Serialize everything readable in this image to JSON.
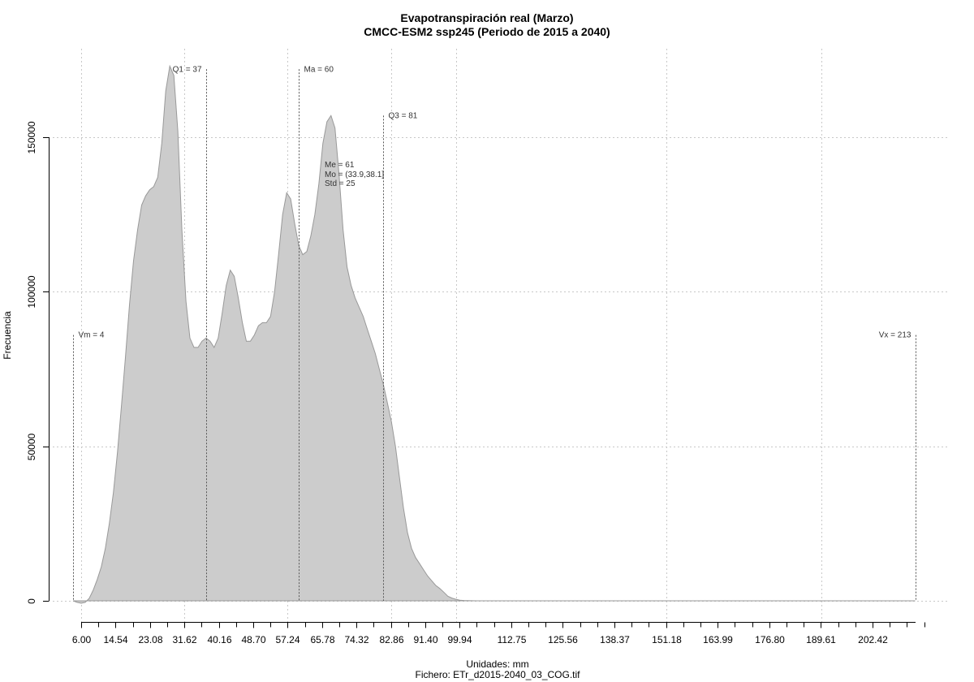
{
  "chart_data": {
    "type": "area",
    "title": "Evapotranspiración real (Marzo)",
    "subtitle": "CMCC-ESM2 ssp245 (Periodo de 2015 a 2040)",
    "xlabel": "Unidades: mm",
    "ylabel": "Frecuencia",
    "caption": "Fichero: ETr_d2015-2040_03_COG.tif",
    "xlim": [
      6.0,
      219
    ],
    "ylim": [
      0,
      150000
    ],
    "grid": true,
    "fill_color": "#cccccc",
    "line_color": "#999999",
    "x_tick_labels": [
      "6.00",
      "14.54",
      "23.08",
      "31.62",
      "40.16",
      "48.70",
      "57.24",
      "65.78",
      "74.32",
      "82.86",
      "91.40",
      "99.94",
      "112.75",
      "125.56",
      "138.37",
      "151.18",
      "163.99",
      "176.80",
      "189.61",
      "202.42"
    ],
    "x_tick_values": [
      6.0,
      14.54,
      23.08,
      31.62,
      40.16,
      48.7,
      57.24,
      65.78,
      74.32,
      82.86,
      91.4,
      99.94,
      112.75,
      125.56,
      138.37,
      151.18,
      163.99,
      176.8,
      189.61,
      202.42
    ],
    "y_tick_labels": [
      "0",
      "50000",
      "100000",
      "150000"
    ],
    "y_tick_values": [
      0,
      50000,
      100000,
      150000
    ],
    "series": [
      {
        "x": [
          4,
          5,
          6,
          7,
          8,
          9,
          10,
          11,
          12,
          13,
          14,
          15,
          16,
          17,
          18,
          19,
          20,
          21,
          22,
          23,
          24,
          25,
          26,
          27,
          28,
          29,
          30,
          31,
          32,
          33,
          34,
          35,
          36,
          37,
          38,
          39,
          40,
          41,
          42,
          43,
          44,
          45,
          46,
          47,
          48,
          49,
          50,
          51,
          52,
          53,
          54,
          55,
          56,
          57,
          58,
          59,
          60,
          61,
          62,
          63,
          64,
          65,
          66,
          67,
          68,
          69,
          70,
          71,
          72,
          73,
          74,
          75,
          76,
          77,
          78,
          79,
          80,
          81,
          82,
          83,
          84,
          85,
          86,
          87,
          88,
          89,
          90,
          91,
          92,
          93,
          94,
          95,
          96,
          97,
          98,
          99,
          100,
          101,
          102,
          103,
          104,
          105,
          106,
          107,
          108,
          109,
          110,
          112,
          114,
          116,
          118,
          120,
          122,
          124,
          126,
          128,
          130,
          135,
          140,
          150,
          160,
          170,
          180,
          190,
          200,
          210,
          213
        ],
        "y": [
          0,
          -500,
          -800,
          -500,
          800,
          3500,
          7000,
          11000,
          17000,
          25000,
          35000,
          48000,
          63000,
          79000,
          96000,
          110000,
          120000,
          128000,
          131000,
          133000,
          134000,
          137000,
          148000,
          165000,
          173000,
          170000,
          152000,
          120000,
          97000,
          85000,
          82000,
          82000,
          84000,
          85000,
          84000,
          82000,
          85000,
          93000,
          102000,
          107000,
          105000,
          98000,
          90000,
          84000,
          84000,
          86000,
          89000,
          90000,
          90000,
          92000,
          100000,
          112000,
          125000,
          132000,
          130000,
          122000,
          115000,
          112000,
          113000,
          118000,
          125000,
          135000,
          148000,
          155000,
          157000,
          153000,
          138000,
          120000,
          108000,
          102000,
          98000,
          95000,
          92000,
          88000,
          84000,
          80000,
          75000,
          70000,
          64000,
          58000,
          50000,
          40000,
          30000,
          22000,
          17000,
          14000,
          12000,
          10000,
          8000,
          6500,
          5000,
          4000,
          2800,
          1500,
          900,
          500,
          200,
          100,
          50,
          20,
          0,
          0,
          0,
          0,
          0,
          0,
          0,
          0,
          0,
          0,
          0,
          0,
          0,
          0,
          0,
          0,
          0,
          0,
          0,
          0,
          0,
          0,
          0,
          0,
          0,
          0,
          0
        ]
      }
    ],
    "annotations": [
      {
        "x": 4,
        "y_top": 86000,
        "label": "Vm = 4",
        "align": "right"
      },
      {
        "x": 37,
        "y_top": 172000,
        "label": "Q1 = 37",
        "align": "left"
      },
      {
        "x": 60,
        "y_top": 172000,
        "label": "Ma = 60",
        "align": "right"
      },
      {
        "x": 81,
        "y_top": 157000,
        "label": "Q3 = 81",
        "align": "right"
      },
      {
        "x": 213,
        "y_top": 86000,
        "label": "Vx = 213",
        "align": "left"
      }
    ],
    "stats_text": [
      "Me = 61",
      "Mo = (33.9,38.1]",
      "Std = 25"
    ]
  }
}
